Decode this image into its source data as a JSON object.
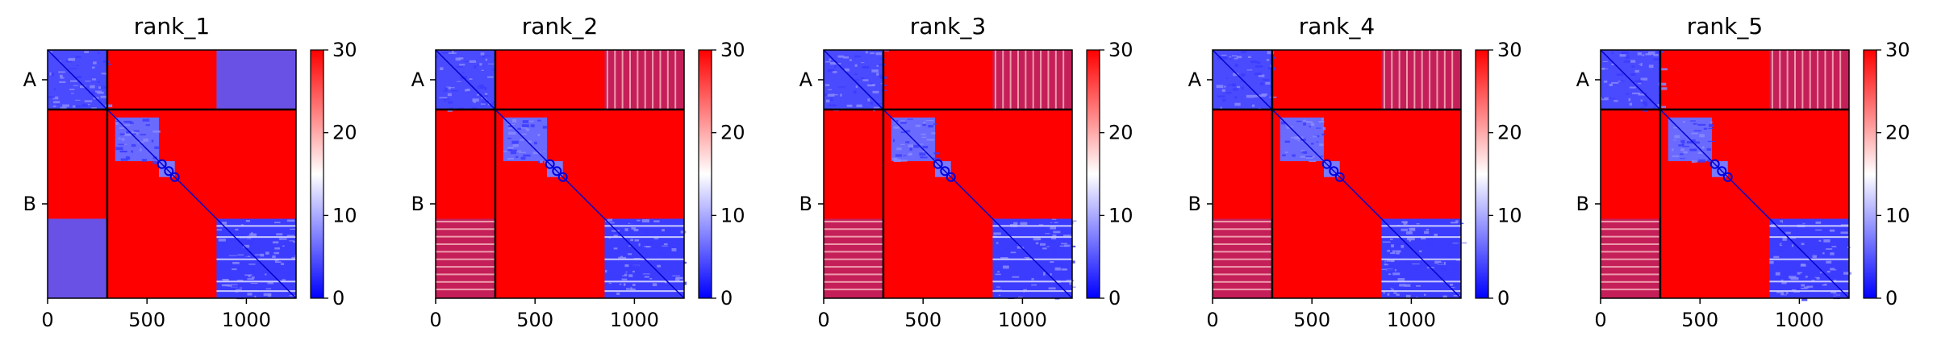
{
  "colormap": {
    "low_color": "#0000ff",
    "mid_color": "#ffffff",
    "high_color": "#ff0000",
    "vmin": 0,
    "vmax": 30,
    "ticks": [
      "0",
      "10",
      "20",
      "30"
    ]
  },
  "chart_data": [
    {
      "type": "heatmap",
      "title": "rank_1",
      "xlim": [
        0,
        1250
      ],
      "x_ticks": [
        "0",
        "500",
        "1000"
      ],
      "y_ticks": [
        "A",
        "B"
      ],
      "chain_boundary": 300,
      "xlabel": "",
      "ylabel": ""
    },
    {
      "type": "heatmap",
      "title": "rank_2",
      "xlim": [
        0,
        1250
      ],
      "x_ticks": [
        "0",
        "500",
        "1000"
      ],
      "y_ticks": [
        "A",
        "B"
      ],
      "chain_boundary": 300,
      "xlabel": "",
      "ylabel": ""
    },
    {
      "type": "heatmap",
      "title": "rank_3",
      "xlim": [
        0,
        1250
      ],
      "x_ticks": [
        "0",
        "500",
        "1000"
      ],
      "y_ticks": [
        "A",
        "B"
      ],
      "chain_boundary": 300,
      "xlabel": "",
      "ylabel": ""
    },
    {
      "type": "heatmap",
      "title": "rank_4",
      "xlim": [
        0,
        1250
      ],
      "x_ticks": [
        "0",
        "500",
        "1000"
      ],
      "y_ticks": [
        "A",
        "B"
      ],
      "chain_boundary": 300,
      "xlabel": "",
      "ylabel": ""
    },
    {
      "type": "heatmap",
      "title": "rank_5",
      "xlim": [
        0,
        1250
      ],
      "x_ticks": [
        "0",
        "500",
        "1000"
      ],
      "y_ticks": [
        "A",
        "B"
      ],
      "chain_boundary": 300,
      "xlabel": "",
      "ylabel": ""
    }
  ]
}
